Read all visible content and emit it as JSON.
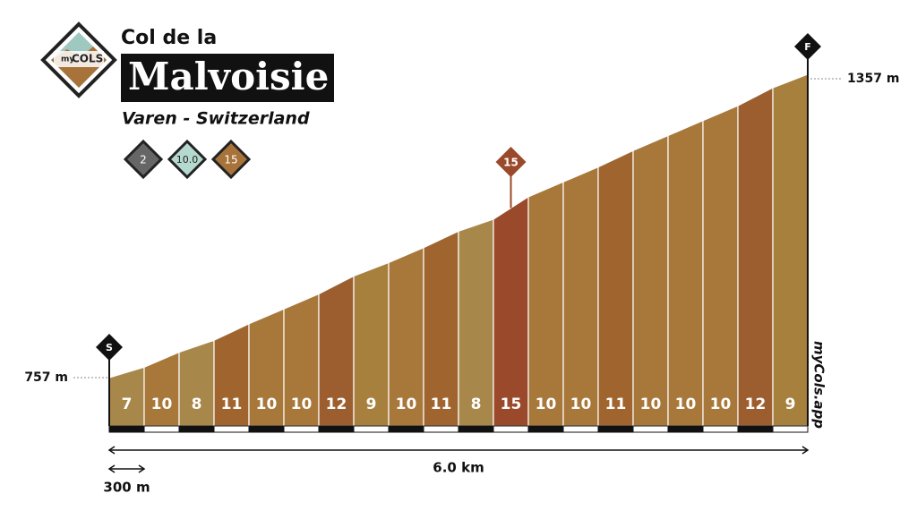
{
  "header": {
    "logo": [
      "my",
      "COLS"
    ],
    "pretitle": "Col de la",
    "title": "Malvoisie",
    "location": "Varen - Switzerland",
    "badges": [
      "2",
      "10.0",
      "15"
    ]
  },
  "chart_data": {
    "type": "climb-profile",
    "values": [
      7,
      10,
      8,
      11,
      10,
      10,
      12,
      9,
      10,
      11,
      8,
      15,
      10,
      10,
      11,
      10,
      10,
      10,
      12,
      9
    ],
    "colors": [
      "#a8874a",
      "#a8773a",
      "#a8874a",
      "#a0652f",
      "#a8773a",
      "#a8773a",
      "#9c5e2e",
      "#a8803e",
      "#a8773a",
      "#a0652f",
      "#a8874a",
      "#9a4a2a",
      "#a8773a",
      "#a8773a",
      "#a0652f",
      "#a8773a",
      "#a8773a",
      "#a8773a",
      "#9c5e2e",
      "#a8803e"
    ],
    "ylim": [
      757,
      1357
    ],
    "yticks": [
      {
        "value": 757,
        "label": "757 m"
      },
      {
        "value": 1357,
        "label": "1357 m"
      }
    ],
    "segment_length": {
      "value": 300,
      "label": "300 m"
    },
    "distance": {
      "value": 6.0,
      "label": "6.0 km"
    },
    "start_marker": "S",
    "finish_marker": "F",
    "watermark": "myCols.app"
  }
}
